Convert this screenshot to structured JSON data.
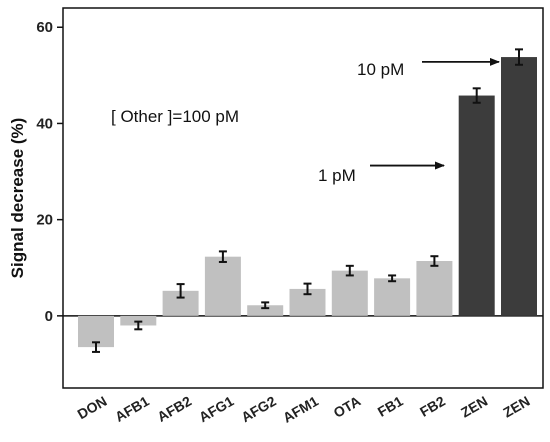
{
  "chart_data": {
    "type": "bar",
    "title": "",
    "xlabel": "",
    "ylabel": "Signal decrease (%)",
    "ylim": [
      -15,
      64
    ],
    "yticks": [
      0,
      20,
      40,
      60
    ],
    "grid": false,
    "categories": [
      "DON",
      "AFB1",
      "AFB2",
      "AFG1",
      "AFG2",
      "AFM1",
      "OTA",
      "FB1",
      "FB2",
      "ZEN",
      "ZEN"
    ],
    "values": [
      -6.5,
      -2.0,
      5.2,
      12.3,
      2.2,
      5.6,
      9.4,
      7.8,
      11.4,
      45.8,
      53.8
    ],
    "errors": [
      1.0,
      0.8,
      1.4,
      1.1,
      0.6,
      1.1,
      1.0,
      0.6,
      1.0,
      1.5,
      1.6
    ],
    "colors": [
      "#c0c0c0",
      "#c0c0c0",
      "#c0c0c0",
      "#c0c0c0",
      "#c0c0c0",
      "#c0c0c0",
      "#c0c0c0",
      "#c0c0c0",
      "#c0c0c0",
      "#3c3c3c",
      "#3c3c3c"
    ],
    "annotations": [
      {
        "text": "[ Other ]=100 pM"
      },
      {
        "text": "1 pM",
        "arrow_to_category_index": 9,
        "arrow_y": 30
      },
      {
        "text": "10 pM",
        "arrow_to_category_index": 10,
        "arrow_y": 53
      }
    ]
  }
}
